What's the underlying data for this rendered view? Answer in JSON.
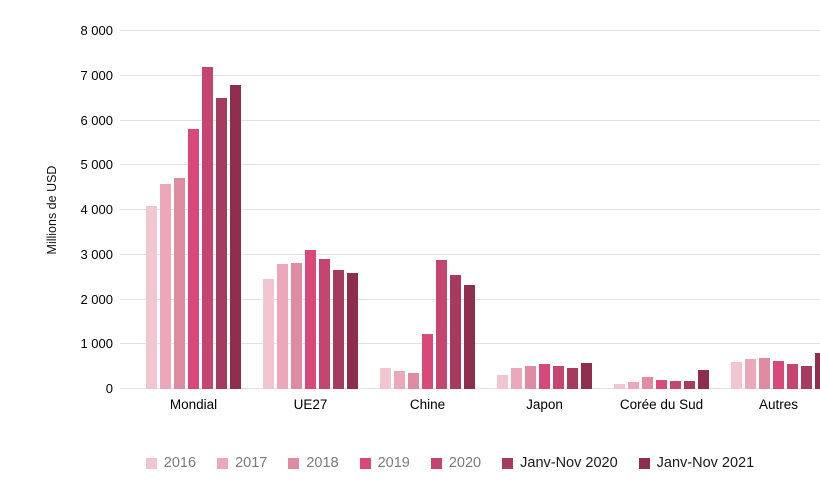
{
  "y_axis": {
    "title": "Millions de USD",
    "ticks": [
      "0",
      "1 000",
      "2 000",
      "3 000",
      "4 000",
      "5 000",
      "6 000",
      "7 000",
      "8 000"
    ],
    "max": 8000
  },
  "colors": {
    "gridline": "#e2e2e2",
    "axis_text": "#000000",
    "legend_year_text": "#7b7b7b",
    "legend_period_text": "#1a1a1a"
  },
  "chart_data": {
    "type": "bar",
    "title": "",
    "xlabel": "",
    "ylabel": "Millions de USD",
    "ylim": [
      0,
      8000
    ],
    "grid": true,
    "legend_position": "bottom",
    "categories": [
      "Mondial",
      "UE27",
      "Chine",
      "Japon",
      "Corée du Sud",
      "Autres"
    ],
    "series": [
      {
        "name": "2016",
        "color": "#F2C6D1",
        "legend_text_color": "#7b7b7b",
        "values": [
          4080,
          2450,
          480,
          310,
          120,
          600
        ]
      },
      {
        "name": "2017",
        "color": "#ECA8BA",
        "legend_text_color": "#7b7b7b",
        "values": [
          4580,
          2790,
          400,
          460,
          160,
          670
        ]
      },
      {
        "name": "2018",
        "color": "#DF8CA3",
        "legend_text_color": "#7b7b7b",
        "values": [
          4720,
          2820,
          360,
          520,
          260,
          700
        ]
      },
      {
        "name": "2019",
        "color": "#D8497A",
        "legend_text_color": "#7b7b7b",
        "values": [
          5800,
          3110,
          1220,
          560,
          210,
          620
        ]
      },
      {
        "name": "2020",
        "color": "#C4456F",
        "legend_text_color": "#7b7b7b",
        "values": [
          7200,
          2900,
          2890,
          510,
          190,
          570
        ]
      },
      {
        "name": "Janv-Nov 2020",
        "color": "#A63A5F",
        "legend_text_color": "#1a1a1a",
        "values": [
          6500,
          2650,
          2550,
          460,
          170,
          520
        ]
      },
      {
        "name": "Janv-Nov 2021",
        "color": "#8E2D4E",
        "legend_text_color": "#1a1a1a",
        "values": [
          6800,
          2600,
          2320,
          590,
          420,
          800
        ]
      }
    ]
  }
}
